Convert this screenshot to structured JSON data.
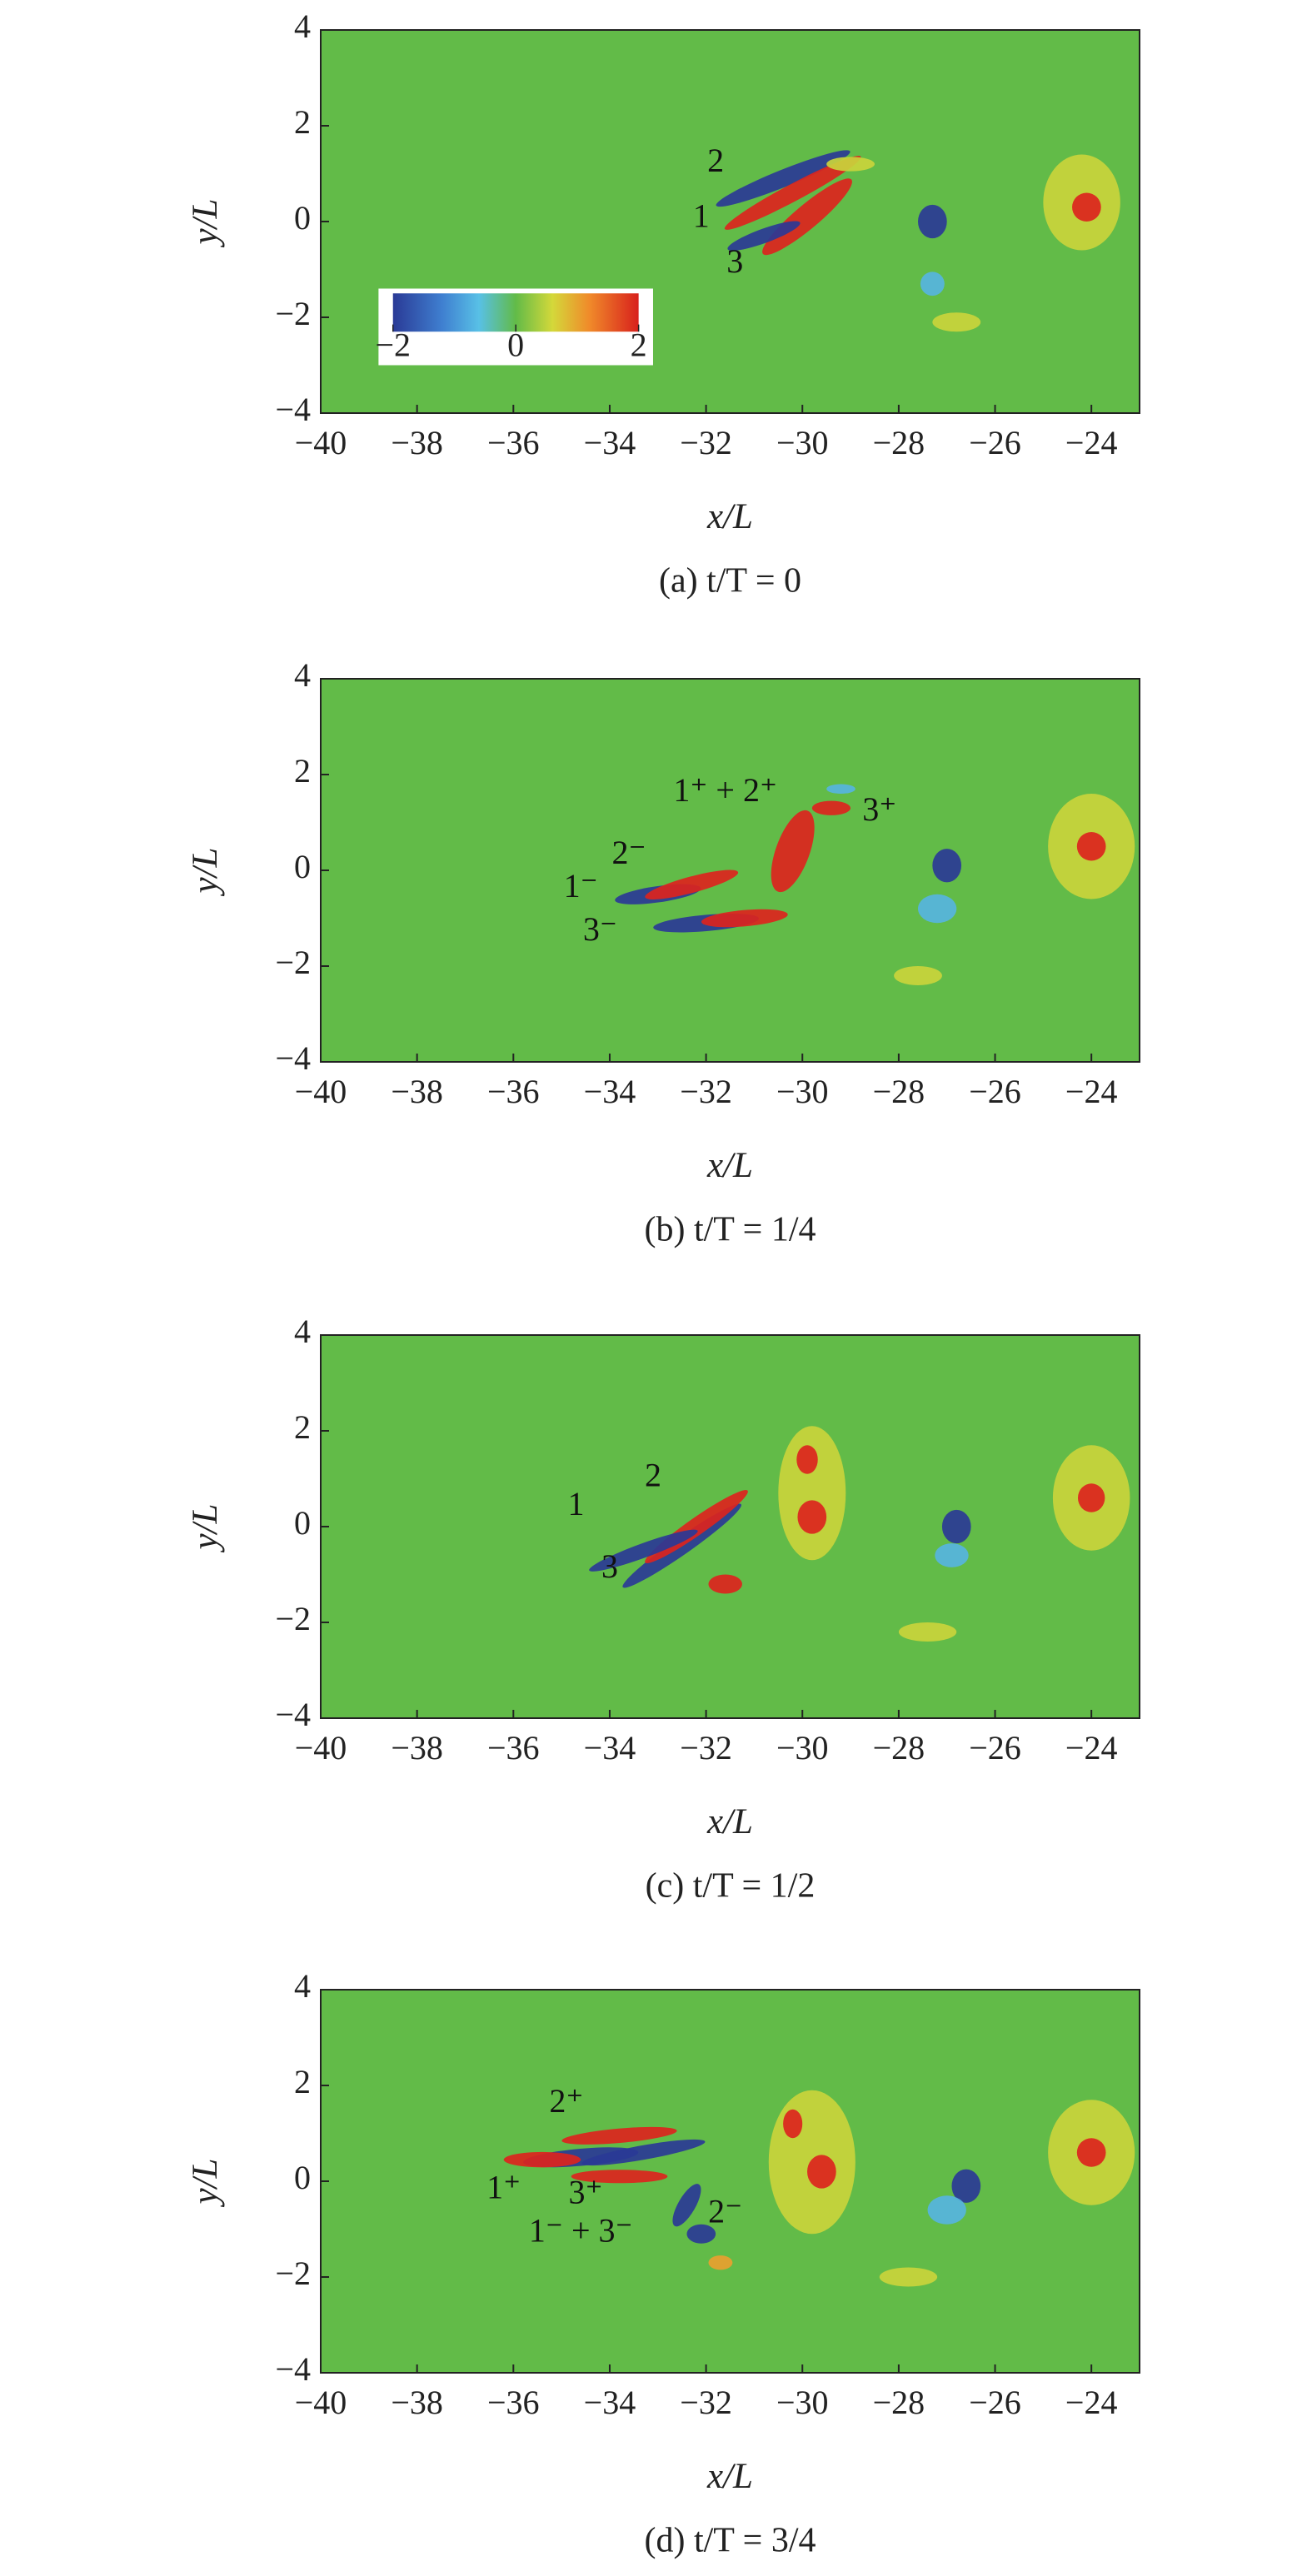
{
  "chart_data": [
    {
      "type": "contour",
      "caption": "(a) t/T = 0",
      "xlabel": "x/L",
      "ylabel": "y/L",
      "xlim": [
        -40,
        -23
      ],
      "ylim": [
        -4,
        4
      ],
      "xticks": [
        {
          "value": -40,
          "label": "−40"
        },
        {
          "value": -38,
          "label": "−38"
        },
        {
          "value": -36,
          "label": "−36"
        },
        {
          "value": -34,
          "label": "−34"
        },
        {
          "value": -32,
          "label": "−32"
        },
        {
          "value": -30,
          "label": "−30"
        },
        {
          "value": -28,
          "label": "−28"
        },
        {
          "value": -26,
          "label": "−26"
        },
        {
          "value": -24,
          "label": "−24"
        }
      ],
      "yticks": [
        {
          "value": -4,
          "label": "−4"
        },
        {
          "value": -2,
          "label": "−2"
        },
        0,
        2,
        4
      ],
      "annotations": [
        "1",
        "2",
        "3"
      ],
      "colorbar": {
        "lim": [
          -2,
          2
        ],
        "ticks": [
          {
            "value": -2,
            "label": "−2"
          },
          0,
          2
        ]
      }
    },
    {
      "type": "contour",
      "caption": "(b) t/T = 1/4",
      "xlabel": "x/L",
      "ylabel": "y/L",
      "xlim": [
        -40,
        -23
      ],
      "ylim": [
        -4,
        4
      ],
      "xticks": [
        {
          "value": -40,
          "label": "−40"
        },
        {
          "value": -38,
          "label": "−38"
        },
        {
          "value": -36,
          "label": "−36"
        },
        {
          "value": -34,
          "label": "−34"
        },
        {
          "value": -32,
          "label": "−32"
        },
        {
          "value": -30,
          "label": "−30"
        },
        {
          "value": -28,
          "label": "−28"
        },
        {
          "value": -26,
          "label": "−26"
        },
        {
          "value": -24,
          "label": "−24"
        }
      ],
      "yticks": [
        {
          "value": -4,
          "label": "−4"
        },
        {
          "value": -2,
          "label": "−2"
        },
        0,
        2,
        4
      ],
      "annotations": [
        "1⁻",
        "2⁻",
        "3⁻",
        "1⁺ + 2⁺",
        "3⁺"
      ]
    },
    {
      "type": "contour",
      "caption": "(c) t/T = 1/2",
      "xlabel": "x/L",
      "ylabel": "y/L",
      "xlim": [
        -40,
        -23
      ],
      "ylim": [
        -4,
        4
      ],
      "xticks": [
        {
          "value": -40,
          "label": "−40"
        },
        {
          "value": -38,
          "label": "−38"
        },
        {
          "value": -36,
          "label": "−36"
        },
        {
          "value": -34,
          "label": "−34"
        },
        {
          "value": -32,
          "label": "−32"
        },
        {
          "value": -30,
          "label": "−30"
        },
        {
          "value": -28,
          "label": "−28"
        },
        {
          "value": -26,
          "label": "−26"
        },
        {
          "value": -24,
          "label": "−24"
        }
      ],
      "yticks": [
        {
          "value": -4,
          "label": "−4"
        },
        {
          "value": -2,
          "label": "−2"
        },
        0,
        2,
        4
      ],
      "annotations": [
        "1",
        "2",
        "3"
      ]
    },
    {
      "type": "contour",
      "caption": "(d) t/T = 3/4",
      "xlabel": "x/L",
      "ylabel": "y/L",
      "xlim": [
        -40,
        -23
      ],
      "ylim": [
        -4,
        4
      ],
      "xticks": [
        {
          "value": -40,
          "label": "−40"
        },
        {
          "value": -38,
          "label": "−38"
        },
        {
          "value": -36,
          "label": "−36"
        },
        {
          "value": -34,
          "label": "−34"
        },
        {
          "value": -32,
          "label": "−32"
        },
        {
          "value": -30,
          "label": "−30"
        },
        {
          "value": -28,
          "label": "−28"
        },
        {
          "value": -26,
          "label": "−26"
        },
        {
          "value": -24,
          "label": "−24"
        }
      ],
      "yticks": [
        {
          "value": -4,
          "label": "−4"
        },
        {
          "value": -2,
          "label": "−2"
        },
        0,
        2,
        4
      ],
      "annotations": [
        "2⁺",
        "1⁺",
        "3⁺",
        "1⁻ + 3⁻",
        "2⁻"
      ]
    }
  ]
}
